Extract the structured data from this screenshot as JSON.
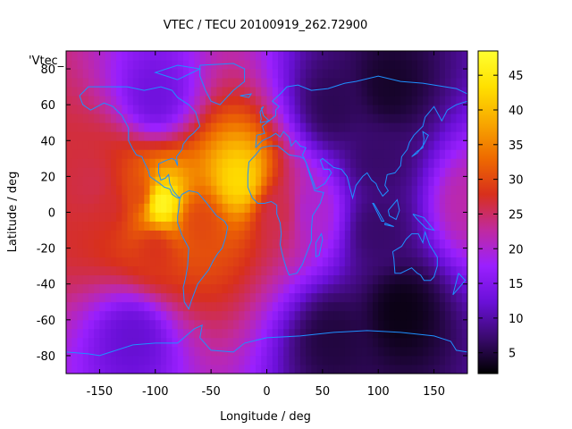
{
  "chart_data": {
    "type": "heatmap",
    "title": "VTEC / TECU 20100919_262.72900",
    "xlabel": "Longitude / deg",
    "ylabel": "Latitude / deg",
    "series_key": "'Vtec_",
    "xlim": [
      -180,
      180
    ],
    "ylim": [
      -90,
      90
    ],
    "x_ticks": [
      -150,
      -100,
      -50,
      0,
      50,
      100,
      150
    ],
    "y_ticks": [
      -80,
      -60,
      -40,
      -20,
      0,
      20,
      40,
      60,
      80
    ],
    "colorbar": {
      "min": 2,
      "max": 48.5,
      "ticks": [
        5,
        10,
        15,
        20,
        25,
        30,
        35,
        40,
        45
      ]
    },
    "colormap": [
      "#000000",
      "#3a0a6e",
      "#6a10d8",
      "#9a20ff",
      "#c02aa0",
      "#d8301c",
      "#ee6a00",
      "#f8a800",
      "#ffe000",
      "#ffff30"
    ],
    "coastline_color": "#1e90ff",
    "features": [
      {
        "lon": -95,
        "lat": 5,
        "value": 48
      },
      {
        "lon": -115,
        "lat": 10,
        "value": 30
      },
      {
        "lon": -140,
        "lat": 5,
        "value": 27
      },
      {
        "lon": -155,
        "lat": 15,
        "value": 26
      },
      {
        "lon": -100,
        "lat": -20,
        "value": 28
      },
      {
        "lon": -60,
        "lat": -5,
        "value": 30
      },
      {
        "lon": -25,
        "lat": 18,
        "value": 43
      },
      {
        "lon": 10,
        "lat": 0,
        "value": 26
      },
      {
        "lon": 40,
        "lat": 0,
        "value": 20
      },
      {
        "lon": -100,
        "lat": 65,
        "value": 13
      },
      {
        "lon": 60,
        "lat": 60,
        "value": 6
      },
      {
        "lon": 110,
        "lat": 70,
        "value": 4
      },
      {
        "lon": 100,
        "lat": 30,
        "value": 7
      },
      {
        "lon": 100,
        "lat": -10,
        "value": 7
      },
      {
        "lon": 120,
        "lat": -55,
        "value": 3
      },
      {
        "lon": 60,
        "lat": -70,
        "value": 5
      },
      {
        "lon": -120,
        "lat": -70,
        "value": 12
      },
      {
        "lon": 180,
        "lat": 5,
        "value": 22
      }
    ]
  }
}
